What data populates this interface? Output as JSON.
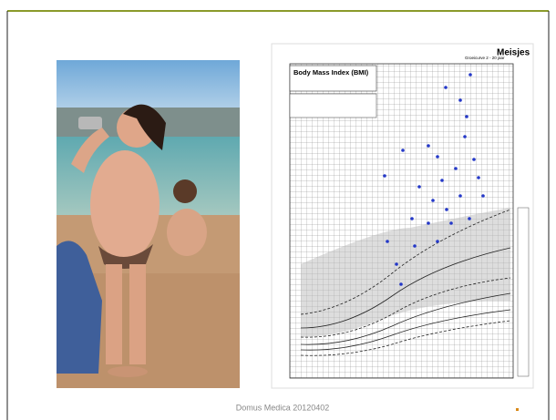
{
  "chart_image": {
    "title": "Body Mass Index (BMI)",
    "heading": "Meisjes",
    "subtitle": "Groeicurve 2 - 20 jaar"
  },
  "footer": "Domus Medica 20120402"
}
